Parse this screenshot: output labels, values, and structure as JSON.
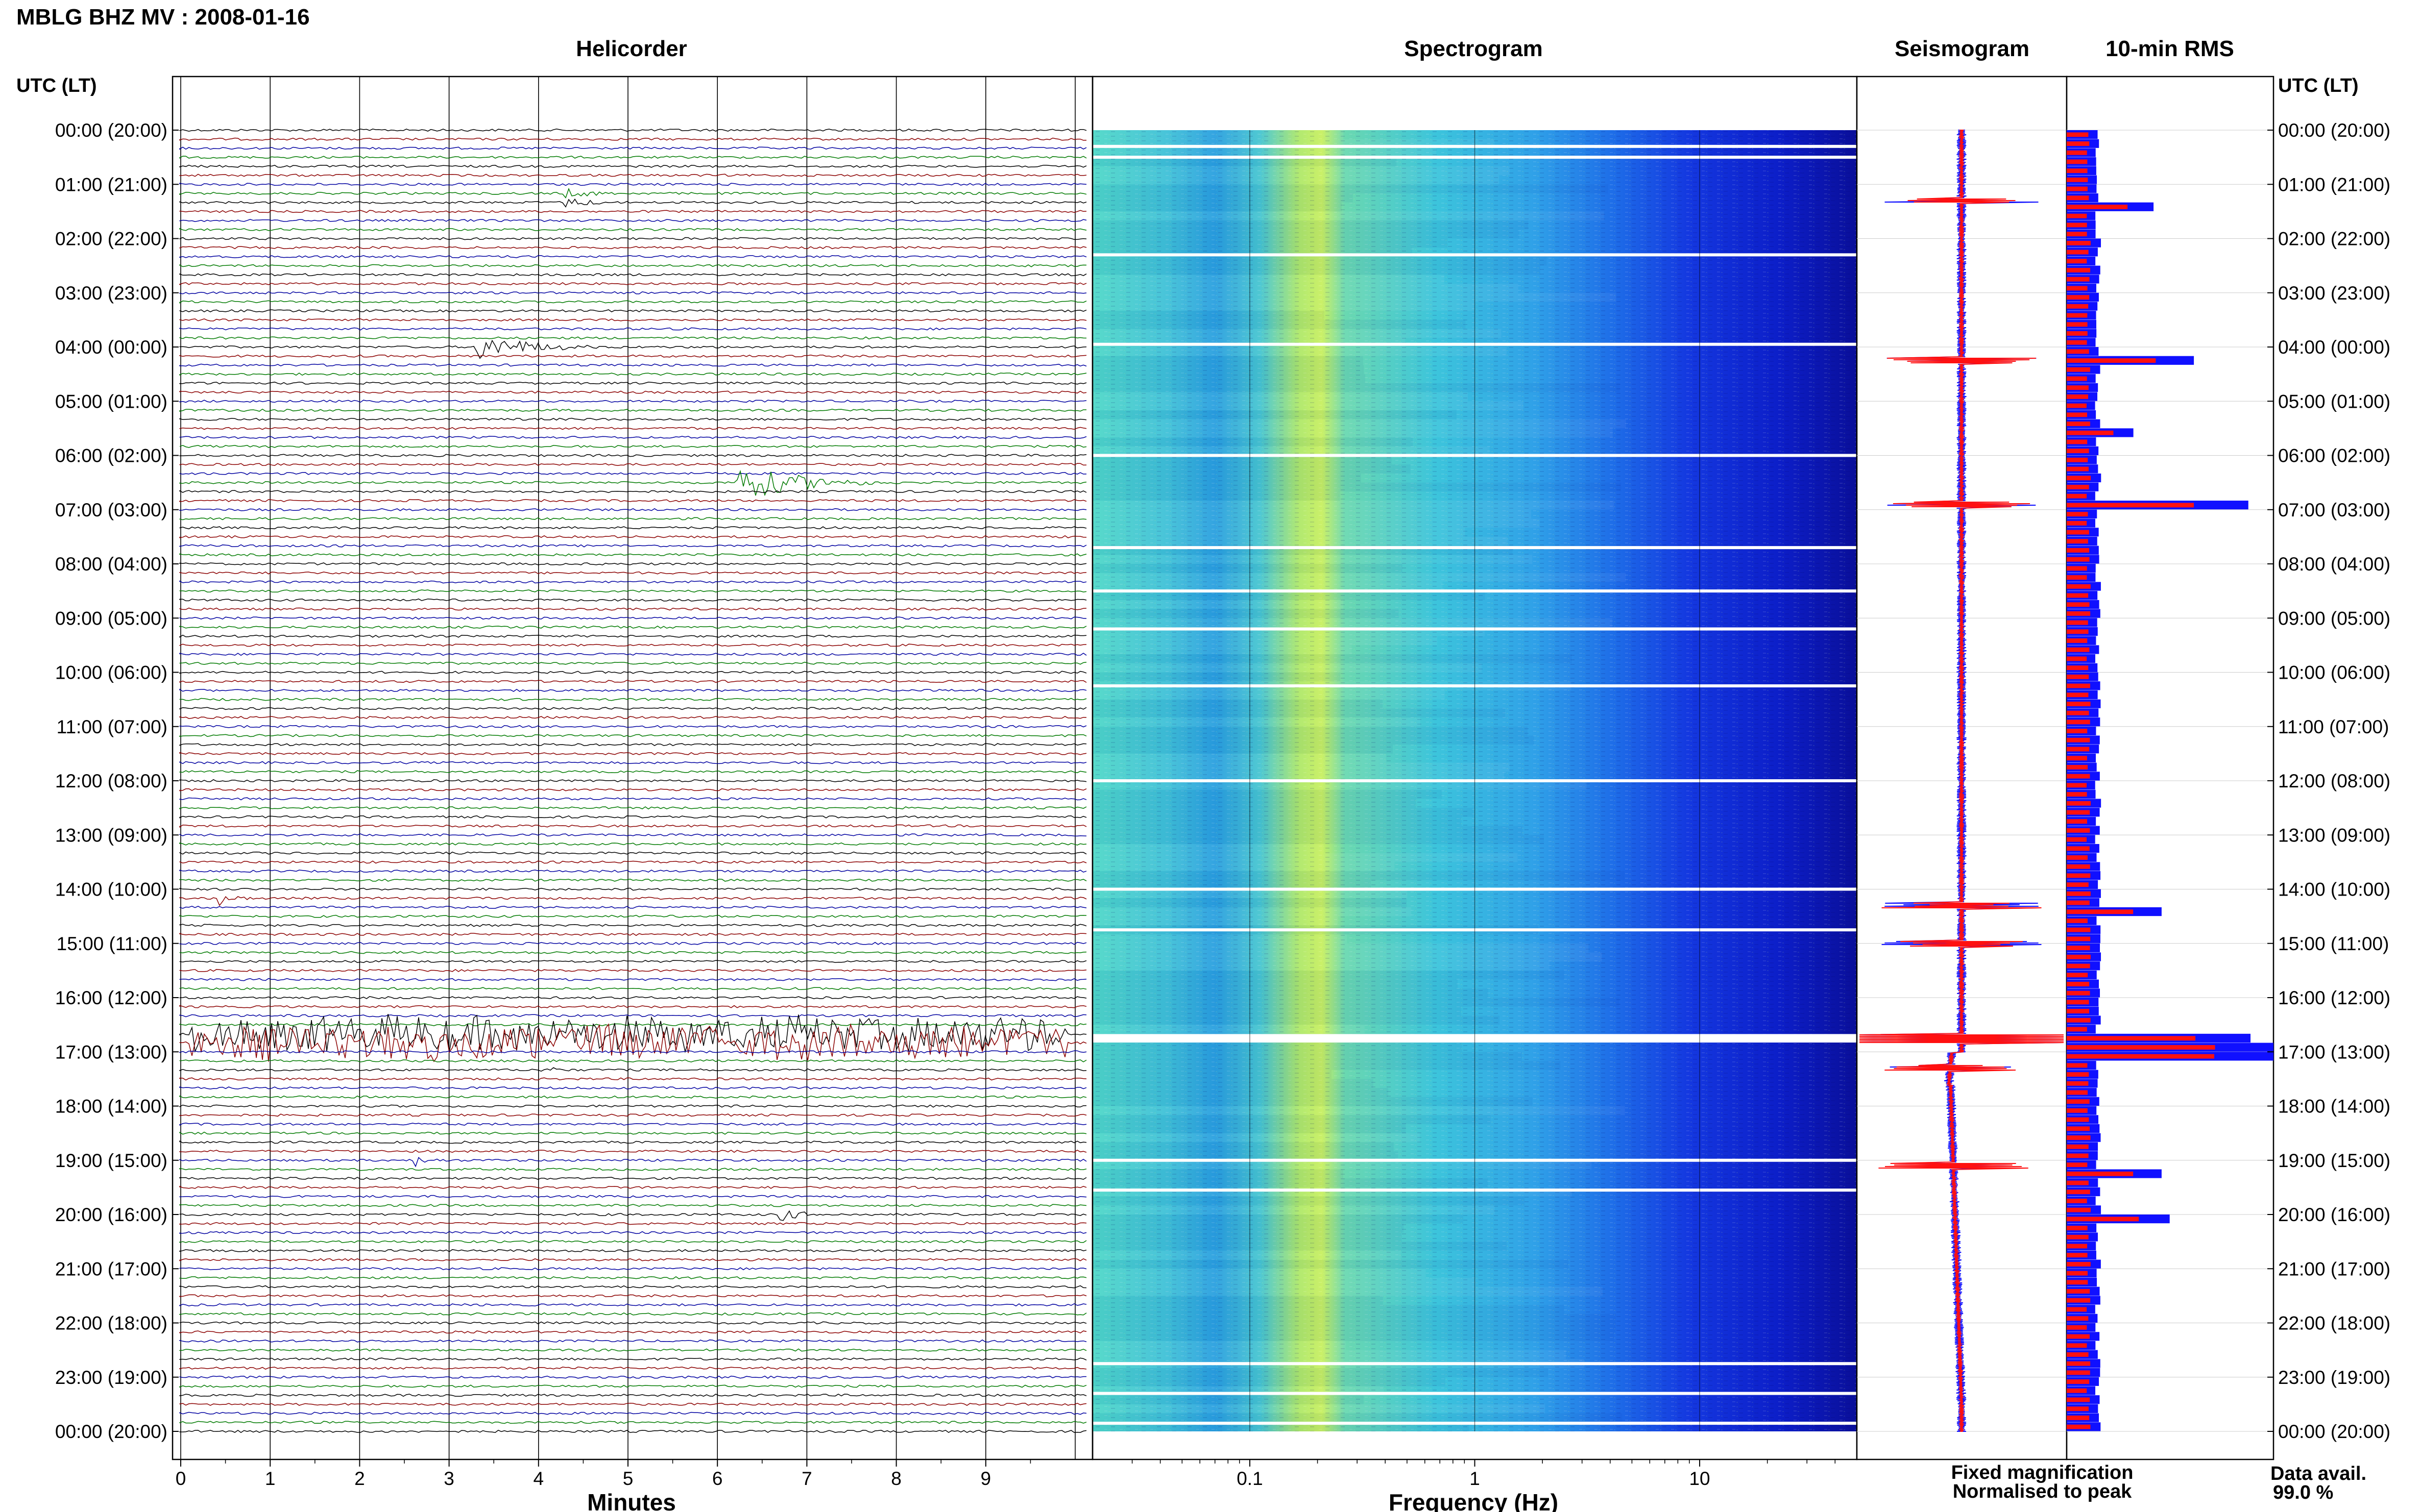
{
  "header": {
    "title": "MBLG BHZ MV : 2008-01-16",
    "time_axis_label_left": "UTC (LT)",
    "time_axis_label_right": "UTC (LT)"
  },
  "panels": {
    "helicorder": "Helicorder",
    "spectrogram": "Spectrogram",
    "seismogram": "Seismogram",
    "rms": "10-min RMS"
  },
  "legend": {
    "fixed": "Fixed magnification",
    "normalised": "Normalised to peak",
    "fixed_color": "#1010ff",
    "normalised_color": "#ff1010"
  },
  "data_avail": {
    "label": "Data avail.",
    "value": "99.0 %"
  },
  "chart_data": [
    {
      "type": "line",
      "panel": "helicorder",
      "xlabel": "Minutes",
      "xlim": [
        0,
        10
      ],
      "x_ticks": [
        "0",
        "1",
        "2",
        "3",
        "4",
        "5",
        "6",
        "7",
        "8",
        "9"
      ],
      "trace_colors": [
        "#000000",
        "#8b0000",
        "#0000a0",
        "#007a00"
      ],
      "rows_per_hour": 6,
      "hours": 24,
      "y_tick_labels": [
        "00:00 (20:00)",
        "01:00 (21:00)",
        "02:00 (22:00)",
        "03:00 (23:00)",
        "04:00 (00:00)",
        "05:00 (01:00)",
        "06:00 (02:00)",
        "07:00 (03:00)",
        "08:00 (04:00)",
        "09:00 (05:00)",
        "10:00 (06:00)",
        "11:00 (07:00)",
        "12:00 (08:00)",
        "13:00 (09:00)",
        "14:00 (10:00)",
        "15:00 (11:00)",
        "16:00 (12:00)",
        "17:00 (13:00)",
        "18:00 (14:00)",
        "19:00 (15:00)",
        "20:00 (16:00)",
        "21:00 (17:00)",
        "22:00 (18:00)",
        "23:00 (19:00)",
        "00:00 (20:00)"
      ],
      "events": [
        {
          "hour": 1.25,
          "minute": 4.3,
          "duration": 1.2,
          "amp": 10
        },
        {
          "hour": 4.0,
          "minute": 3.3,
          "duration": 1.8,
          "amp": 28
        },
        {
          "hour": 6.5,
          "minute": 6.2,
          "duration": 2.0,
          "amp": 42
        },
        {
          "hour": 14.2,
          "minute": 0.4,
          "duration": 0.6,
          "amp": 18
        },
        {
          "hour": 16.75,
          "minute": 0.1,
          "duration": 9.8,
          "amp": 40
        },
        {
          "hour": 17.3,
          "minute": 4.0,
          "duration": 1.0,
          "amp": 8
        },
        {
          "hour": 19.0,
          "minute": 2.6,
          "duration": 0.6,
          "amp": 14
        },
        {
          "hour": 20.0,
          "minute": 6.7,
          "duration": 0.8,
          "amp": 14
        }
      ]
    },
    {
      "type": "heatmap",
      "panel": "spectrogram",
      "xlabel": "Frequency (Hz)",
      "x_scale": "log",
      "xlim": [
        0.02,
        50
      ],
      "x_ticks": [
        "0.1",
        "1",
        "10"
      ],
      "gap_hours": [
        0.3,
        0.5,
        2.3,
        3.95,
        6.0,
        7.7,
        8.5,
        9.2,
        10.25,
        12.0,
        14.0,
        14.75,
        16.7,
        16.8,
        19.0,
        19.55,
        22.75,
        23.3,
        23.85
      ]
    },
    {
      "type": "line",
      "panel": "seismogram",
      "series": [
        {
          "name": "Fixed magnification",
          "color": "#1010ff"
        },
        {
          "name": "Normalised to peak",
          "color": "#ff1010"
        }
      ],
      "spikes_hours": [
        1.3,
        4.25,
        6.9,
        14.3,
        15.0,
        16.75,
        17.3,
        19.1
      ],
      "trend": "offset to left after 17:00, returning to center by 23:00"
    },
    {
      "type": "bar",
      "panel": "rms",
      "orientation": "horizontal",
      "series": [
        {
          "name": "Fixed magnification",
          "color": "#1010ff"
        },
        {
          "name": "Normalised to peak",
          "color": "#ff1010"
        }
      ],
      "bin_minutes": 10,
      "peaks": [
        {
          "hour": 1.3,
          "value": 0.38
        },
        {
          "hour": 4.2,
          "value": 0.58
        },
        {
          "hour": 5.55,
          "value": 0.28
        },
        {
          "hour": 6.8,
          "value": 0.85
        },
        {
          "hour": 14.35,
          "value": 0.42
        },
        {
          "hour": 16.9,
          "value": 1.0
        },
        {
          "hour": 19.1,
          "value": 0.42
        },
        {
          "hour": 20.05,
          "value": 0.46
        }
      ]
    }
  ]
}
